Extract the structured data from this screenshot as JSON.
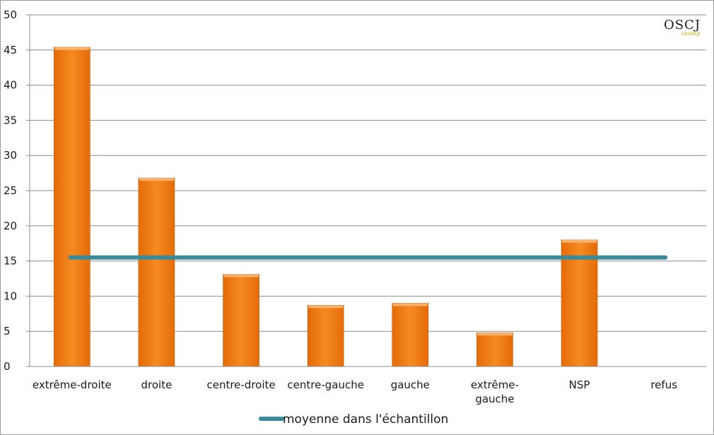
{
  "logo": {
    "text": "OSCJ",
    "subtext": "cesdip"
  },
  "colors": {
    "bar": "#f07a12",
    "bar_top": "#f9b26a",
    "mean_line": "#3a8a9a",
    "grid": "#8c8c8c"
  },
  "chart_data": {
    "type": "bar",
    "title": "",
    "xlabel": "",
    "ylabel": "",
    "ylim": [
      0,
      50
    ],
    "yticks": [
      0,
      5,
      10,
      15,
      20,
      25,
      30,
      35,
      40,
      45,
      50
    ],
    "categories": [
      [
        "extrême-droite"
      ],
      [
        "droite"
      ],
      [
        "centre-droite"
      ],
      [
        "centre-gauche"
      ],
      [
        "gauche"
      ],
      [
        "extrême-",
        "gauche"
      ],
      [
        "NSP"
      ],
      [
        "refus"
      ]
    ],
    "series": [
      {
        "values": [
          45.4,
          26.8,
          13.1,
          8.7,
          9.0,
          4.8,
          18.0,
          0
        ]
      }
    ],
    "reference_line": {
      "name": "moyenne dans l'échantillon",
      "value": 15.5
    },
    "grid": true,
    "legend": "bottom-center"
  }
}
